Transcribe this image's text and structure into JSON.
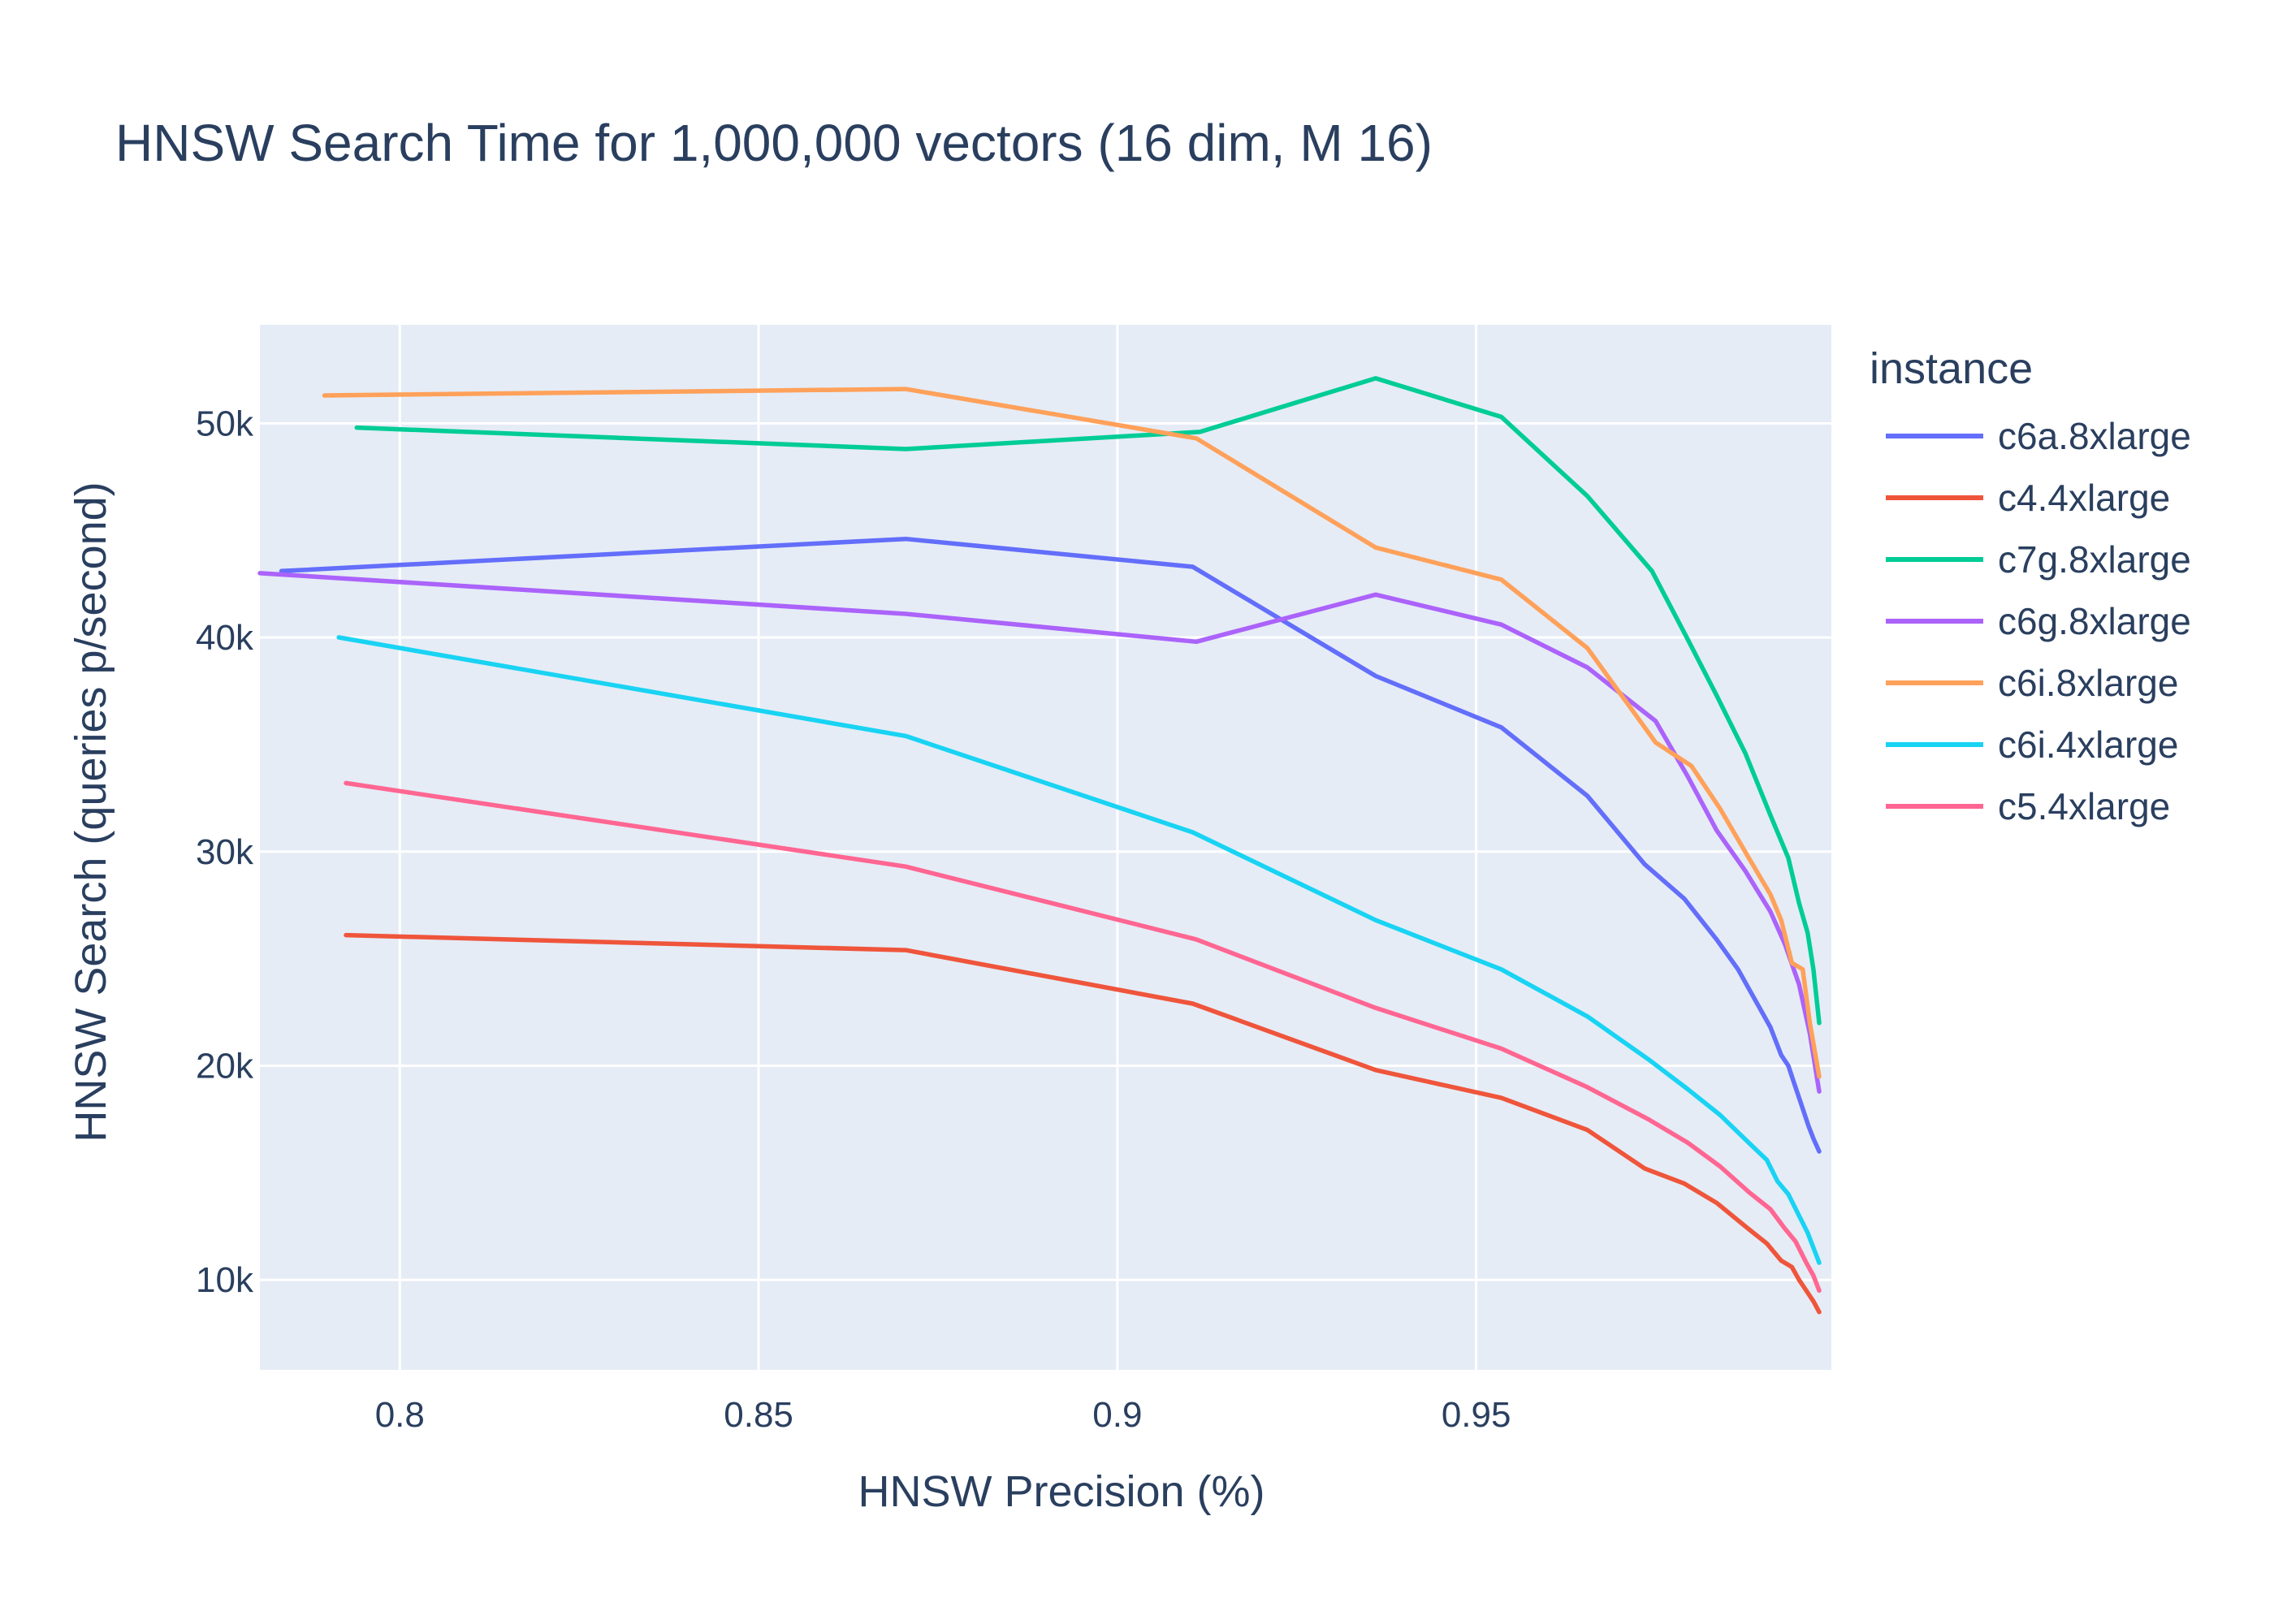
{
  "chart_data": {
    "type": "line",
    "title": "HNSW Search Time for 1,000,000 vectors (16 dim, M 16)",
    "xlabel": "HNSW Precision (%)",
    "ylabel": "HNSW Search (queries p/second)",
    "xlim": [
      0.7805,
      0.9995
    ],
    "ylim": [
      5800,
      54600
    ],
    "xticks": [
      0.8,
      0.85,
      0.9,
      0.95
    ],
    "xtick_labels": [
      "0.8",
      "0.85",
      "0.9",
      "0.95"
    ],
    "yticks": [
      10000,
      20000,
      30000,
      40000,
      50000
    ],
    "ytick_labels": [
      "10k",
      "20k",
      "30k",
      "40k",
      "50k"
    ],
    "grid": true,
    "legend": {
      "title": "instance",
      "position": "right"
    },
    "series": [
      {
        "name": "c6a.8xlarge",
        "color": "#636efa",
        "x": [
          0.7835,
          0.8705,
          0.9105,
          0.936,
          0.9535,
          0.9655,
          0.9735,
          0.979,
          0.9835,
          0.9865,
          0.989,
          0.991,
          0.9925,
          0.9935,
          0.9945,
          0.9955,
          0.9963,
          0.997,
          0.9978
        ],
        "y": [
          43100,
          44600,
          43300,
          38200,
          35800,
          32600,
          29400,
          27800,
          25900,
          24500,
          23000,
          21800,
          20500,
          20000,
          19000,
          18000,
          17200,
          16600,
          16000
        ]
      },
      {
        "name": "c4.4xlarge",
        "color": "#ef553b",
        "x": [
          0.7925,
          0.8705,
          0.9105,
          0.936,
          0.9535,
          0.9655,
          0.9735,
          0.979,
          0.9835,
          0.9875,
          0.9905,
          0.9925,
          0.994,
          0.995,
          0.996,
          0.997,
          0.9978
        ],
        "y": [
          26100,
          25400,
          22900,
          19800,
          18500,
          17000,
          15200,
          14500,
          13600,
          12500,
          11700,
          10900,
          10600,
          10000,
          9500,
          9000,
          8500
        ]
      },
      {
        "name": "c7g.8xlarge",
        "color": "#00cc96",
        "x": [
          0.794,
          0.8705,
          0.9115,
          0.936,
          0.9535,
          0.9655,
          0.9745,
          0.9795,
          0.9835,
          0.9875,
          0.991,
          0.9935,
          0.995,
          0.9962,
          0.997,
          0.9978
        ],
        "y": [
          49800,
          48800,
          49600,
          52100,
          50300,
          46600,
          43100,
          39900,
          37300,
          34600,
          31700,
          29700,
          27600,
          26200,
          24500,
          22000
        ]
      },
      {
        "name": "c6g.8xlarge",
        "color": "#ab63fa",
        "x": [
          0.7805,
          0.8705,
          0.911,
          0.936,
          0.9535,
          0.9655,
          0.975,
          0.9795,
          0.9835,
          0.9875,
          0.991,
          0.993,
          0.995,
          0.9965,
          0.9978
        ],
        "y": [
          43000,
          41100,
          39800,
          42000,
          40600,
          38600,
          36100,
          33500,
          31000,
          29100,
          27200,
          25700,
          23800,
          21500,
          18800
        ]
      },
      {
        "name": "c6i.8xlarge",
        "color": "#ffa15a",
        "x": [
          0.7895,
          0.8705,
          0.911,
          0.936,
          0.9535,
          0.9655,
          0.975,
          0.98,
          0.984,
          0.988,
          0.991,
          0.9925,
          0.994,
          0.9955,
          0.9965,
          0.9978
        ],
        "y": [
          51300,
          51600,
          49300,
          44200,
          42700,
          39500,
          35100,
          34000,
          32000,
          29700,
          28000,
          26800,
          24800,
          24500,
          22000,
          19500
        ]
      },
      {
        "name": "c6i.4xlarge",
        "color": "#19d3f3",
        "x": [
          0.7915,
          0.8705,
          0.9105,
          0.936,
          0.9535,
          0.9655,
          0.974,
          0.9795,
          0.984,
          0.988,
          0.9905,
          0.992,
          0.9935,
          0.995,
          0.9962,
          0.997,
          0.9978
        ],
        "y": [
          40000,
          35400,
          30900,
          26800,
          24500,
          22300,
          20300,
          18900,
          17700,
          16400,
          15600,
          14600,
          14000,
          13000,
          12200,
          11500,
          10800
        ]
      },
      {
        "name": "c5.4xlarge",
        "color": "#ff6692",
        "x": [
          0.7925,
          0.8705,
          0.911,
          0.936,
          0.9535,
          0.9655,
          0.974,
          0.9795,
          0.984,
          0.988,
          0.991,
          0.993,
          0.9945,
          0.996,
          0.997,
          0.9978
        ],
        "y": [
          33200,
          29300,
          25900,
          22700,
          20800,
          19000,
          17500,
          16400,
          15300,
          14100,
          13300,
          12400,
          11800,
          10800,
          10200,
          9500
        ]
      }
    ]
  }
}
